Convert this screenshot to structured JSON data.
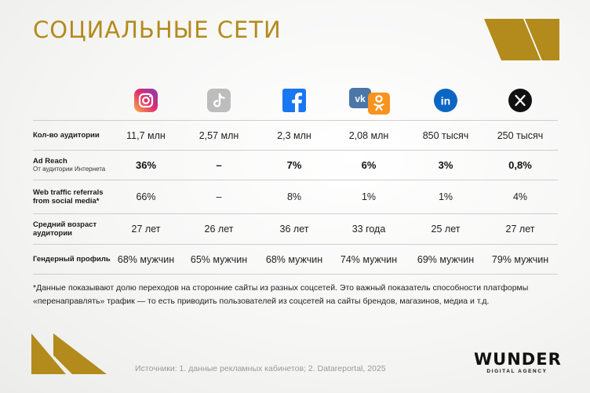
{
  "title": "СОЦИАЛЬНЫЕ СЕТИ",
  "colors": {
    "accent": "#b38a1c",
    "instagram": "#e1306c",
    "tiktok": "#bdbdbd",
    "facebook": "#1877f2",
    "vk": "#4a76a8",
    "ok": "#f7931e",
    "linkedin": "#0a66c2",
    "x": "#111111"
  },
  "platform_icons": [
    "instagram-icon",
    "tiktok-icon",
    "facebook-icon",
    "vk-ok-icon",
    "linkedin-icon",
    "x-icon"
  ],
  "rows": [
    {
      "label": "Кол-во аудитории",
      "sublabel": "",
      "bold": false,
      "values": [
        "11,7 млн",
        "2,57 млн",
        "2,3 млн",
        "2,08 млн",
        "850 тысяч",
        "250 тысяч"
      ]
    },
    {
      "label": "Ad Reach",
      "sublabel": "От аудитории Интернета",
      "bold": true,
      "values": [
        "36%",
        "–",
        "7%",
        "6%",
        "3%",
        "0,8%"
      ]
    },
    {
      "label": "Web traffic referrals from social media*",
      "sublabel": "",
      "bold": false,
      "values": [
        "66%",
        "–",
        "8%",
        "1%",
        "1%",
        "4%"
      ]
    },
    {
      "label": "Средний возраст аудитории",
      "sublabel": "",
      "bold": false,
      "values": [
        "27 лет",
        "26 лет",
        "36 лет",
        "33 года",
        "25 лет",
        "27 лет"
      ]
    },
    {
      "label": "Гендерный профиль",
      "sublabel": "",
      "bold": false,
      "values": [
        "68% мужчин",
        "65% мужчин",
        "68% мужчин",
        "74% мужчин",
        "69% мужчин",
        "79% мужчин"
      ]
    }
  ],
  "footnote": "*Данные показывают долю переходов на сторонние сайты из разных соцсетей. Это важный показатель способности платформы «перенаправлять» трафик — то есть приводить пользователей из соцсетей на сайты брендов, магазинов, медиа и т.д.",
  "sources": "Источники: 1. данные рекламных кабинетов; 2. Datareportal, 2025",
  "logo": {
    "brand": "WUNDER",
    "tagline": "DIGITAL AGENCY"
  }
}
